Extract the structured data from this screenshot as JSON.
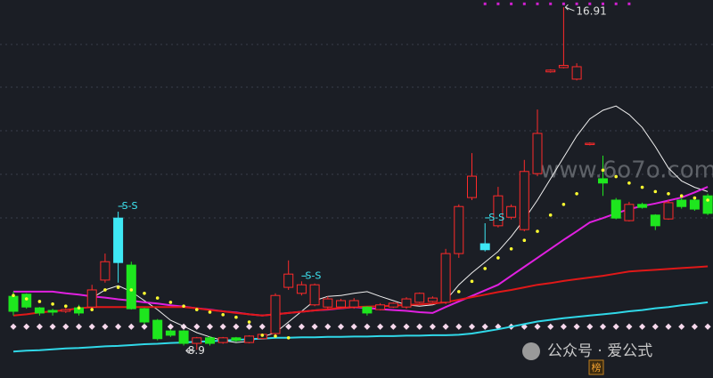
{
  "chart_data": {
    "type": "candlestick",
    "ylim": [
      8.24,
      17.08
    ],
    "up_color": "#ff2a2a",
    "down_color": "#1ee61e",
    "highlight_color": "#3ee8f4",
    "highlight": [
      8,
      36
    ],
    "open": [
      10.15,
      10.2,
      9.88,
      9.82,
      9.8,
      9.88,
      9.9,
      10.53,
      10.94,
      10.88,
      9.86,
      9.59,
      9.34,
      9.34,
      9.05,
      9.18,
      9.07,
      9.18,
      9.07,
      9.16,
      9.28,
      10.36,
      10.22,
      9.95,
      9.9,
      9.9,
      9.9,
      9.9,
      9.84,
      9.9,
      9.9,
      10.01,
      10.03,
      10.01,
      11.15,
      12.46,
      11.24,
      11.8,
      12.0,
      11.71,
      13.02,
      15.4,
      15.5,
      15.23,
      13.7,
      12.9,
      12.4,
      11.92,
      12.3,
      12.05,
      11.96,
      12.4,
      12.4,
      12.5
    ],
    "high": [
      10.26,
      10.22,
      9.9,
      9.86,
      9.88,
      9.95,
      10.42,
      11.15,
      12.13,
      10.96,
      9.88,
      9.62,
      9.38,
      9.36,
      9.2,
      9.22,
      9.2,
      9.2,
      9.24,
      9.28,
      10.22,
      10.99,
      10.5,
      10.45,
      10.15,
      10.09,
      10.11,
      9.92,
      9.99,
      10.01,
      10.13,
      10.24,
      10.15,
      11.26,
      12.3,
      13.5,
      11.86,
      12.71,
      12.3,
      13.34,
      14.52,
      15.46,
      16.91,
      15.6,
      13.75,
      13.44,
      12.45,
      12.36,
      12.34,
      12.07,
      12.4,
      12.46,
      12.44,
      12.55
    ],
    "low": [
      9.7,
      9.86,
      9.7,
      9.7,
      9.76,
      9.7,
      9.84,
      10.47,
      10.47,
      9.84,
      9.5,
      9.12,
      9.2,
      9.0,
      8.9,
      9.0,
      9.04,
      9.08,
      9.05,
      9.14,
      9.22,
      10.3,
      10.17,
      9.92,
      9.86,
      9.88,
      9.86,
      9.7,
      9.82,
      9.88,
      9.86,
      9.99,
      10.01,
      9.97,
      11.05,
      12.4,
      11.2,
      11.76,
      11.95,
      11.67,
      12.96,
      15.38,
      15.48,
      15.2,
      13.68,
      12.5,
      11.95,
      11.9,
      12.2,
      11.7,
      11.94,
      12.2,
      12.15,
      12.05
    ],
    "close": [
      9.8,
      9.9,
      9.76,
      9.78,
      9.84,
      9.76,
      10.3,
      10.96,
      11.98,
      9.86,
      9.55,
      9.16,
      9.24,
      9.05,
      9.18,
      9.05,
      9.18,
      9.12,
      9.22,
      9.26,
      10.17,
      10.67,
      10.42,
      10.42,
      10.09,
      10.05,
      10.05,
      9.76,
      9.95,
      9.99,
      10.09,
      10.22,
      10.11,
      11.15,
      12.25,
      12.96,
      11.38,
      12.5,
      12.25,
      13.07,
      13.96,
      15.44,
      15.55,
      15.52,
      13.73,
      12.8,
      11.98,
      12.3,
      12.23,
      11.8,
      12.34,
      12.25,
      12.19,
      12.09
    ],
    "lines": [
      {
        "color": "#f0f0f0",
        "width": 1,
        "values": [
          null,
          null,
          null,
          null,
          null,
          null,
          10.11,
          10.3,
          10.4,
          10.26,
          10.05,
          9.84,
          9.59,
          9.45,
          9.3,
          9.2,
          9.12,
          9.07,
          9.1,
          9.2,
          9.3,
          9.55,
          9.8,
          10.05,
          10.15,
          10.17,
          10.22,
          10.26,
          10.15,
          10.05,
          9.95,
          9.92,
          9.95,
          10.05,
          10.42,
          10.7,
          10.95,
          11.2,
          11.55,
          11.95,
          12.4,
          12.9,
          13.4,
          13.9,
          14.3,
          14.5,
          14.6,
          14.4,
          14.1,
          13.65,
          13.15,
          12.85,
          12.7,
          12.6
        ]
      },
      {
        "color": "#e020e0",
        "width": 2,
        "values": [
          10.26,
          10.26,
          10.26,
          10.26,
          10.22,
          10.19,
          10.15,
          10.12,
          10.08,
          10.05,
          10.01,
          9.98,
          9.94,
          9.91,
          9.87,
          9.84,
          9.8,
          9.77,
          9.73,
          9.7,
          9.73,
          9.76,
          9.79,
          9.82,
          9.84,
          9.87,
          9.9,
          9.88,
          9.85,
          9.83,
          9.81,
          9.78,
          9.76,
          9.9,
          10.03,
          10.16,
          10.29,
          10.42,
          10.63,
          10.84,
          11.05,
          11.26,
          11.47,
          11.67,
          11.88,
          11.98,
          12.09,
          12.19,
          12.26,
          12.32,
          12.39,
          12.46,
          12.58,
          12.71
        ]
      },
      {
        "color": "#e01818",
        "width": 2,
        "values": [
          9.7,
          9.73,
          9.77,
          9.8,
          9.83,
          9.87,
          9.9,
          9.9,
          9.9,
          9.9,
          9.9,
          9.9,
          9.9,
          9.9,
          9.87,
          9.83,
          9.8,
          9.76,
          9.73,
          9.7,
          9.73,
          9.76,
          9.79,
          9.82,
          9.85,
          9.88,
          9.9,
          9.91,
          9.92,
          9.93,
          9.95,
          9.96,
          9.98,
          10.01,
          10.07,
          10.13,
          10.19,
          10.25,
          10.3,
          10.36,
          10.42,
          10.46,
          10.51,
          10.55,
          10.59,
          10.63,
          10.68,
          10.73,
          10.75,
          10.77,
          10.79,
          10.81,
          10.83,
          10.85
        ]
      },
      {
        "color": "#30d8e8",
        "width": 2,
        "values": [
          8.86,
          8.88,
          8.89,
          8.91,
          8.93,
          8.94,
          8.96,
          8.98,
          8.99,
          9.01,
          9.03,
          9.04,
          9.06,
          9.07,
          9.09,
          9.1,
          9.12,
          9.13,
          9.15,
          9.16,
          9.18,
          9.18,
          9.19,
          9.19,
          9.2,
          9.2,
          9.21,
          9.21,
          9.22,
          9.22,
          9.23,
          9.23,
          9.24,
          9.24,
          9.25,
          9.28,
          9.33,
          9.38,
          9.44,
          9.5,
          9.56,
          9.6,
          9.64,
          9.67,
          9.7,
          9.73,
          9.76,
          9.8,
          9.83,
          9.87,
          9.9,
          9.94,
          9.97,
          10.01
        ]
      }
    ],
    "dots": {
      "color": "#ffff30",
      "values": [
        10.17,
        10.09,
        10.03,
        9.97,
        9.92,
        9.88,
        9.84,
        10.3,
        10.36,
        10.3,
        10.22,
        10.11,
        10.01,
        9.92,
        9.84,
        9.78,
        9.72,
        9.66,
        9.55,
        9.24,
        9.22,
        9.18,
        null,
        null,
        null,
        null,
        null,
        null,
        null,
        null,
        null,
        null,
        null,
        null,
        10.26,
        10.5,
        10.8,
        11.05,
        11.26,
        11.46,
        11.67,
        12.05,
        12.3,
        12.55,
        null,
        13.1,
        12.95,
        12.8,
        12.7,
        12.6,
        12.55,
        12.5,
        12.45,
        12.4
      ]
    },
    "levels": [
      {
        "color": "#f6d8ec",
        "value": 9.44,
        "span": [
          0,
          53
        ]
      },
      {
        "color": "#d020d0",
        "value": 16.99,
        "span": [
          36,
          47
        ]
      }
    ],
    "signals": [
      {
        "index": 8,
        "text": "S-S"
      },
      {
        "index": 22,
        "text": "S-S"
      },
      {
        "index": 36,
        "text": "S-S"
      }
    ],
    "watermark": "www.6o7o.com",
    "footer_label": "公众号 · 爱公式",
    "badge": "榜"
  }
}
